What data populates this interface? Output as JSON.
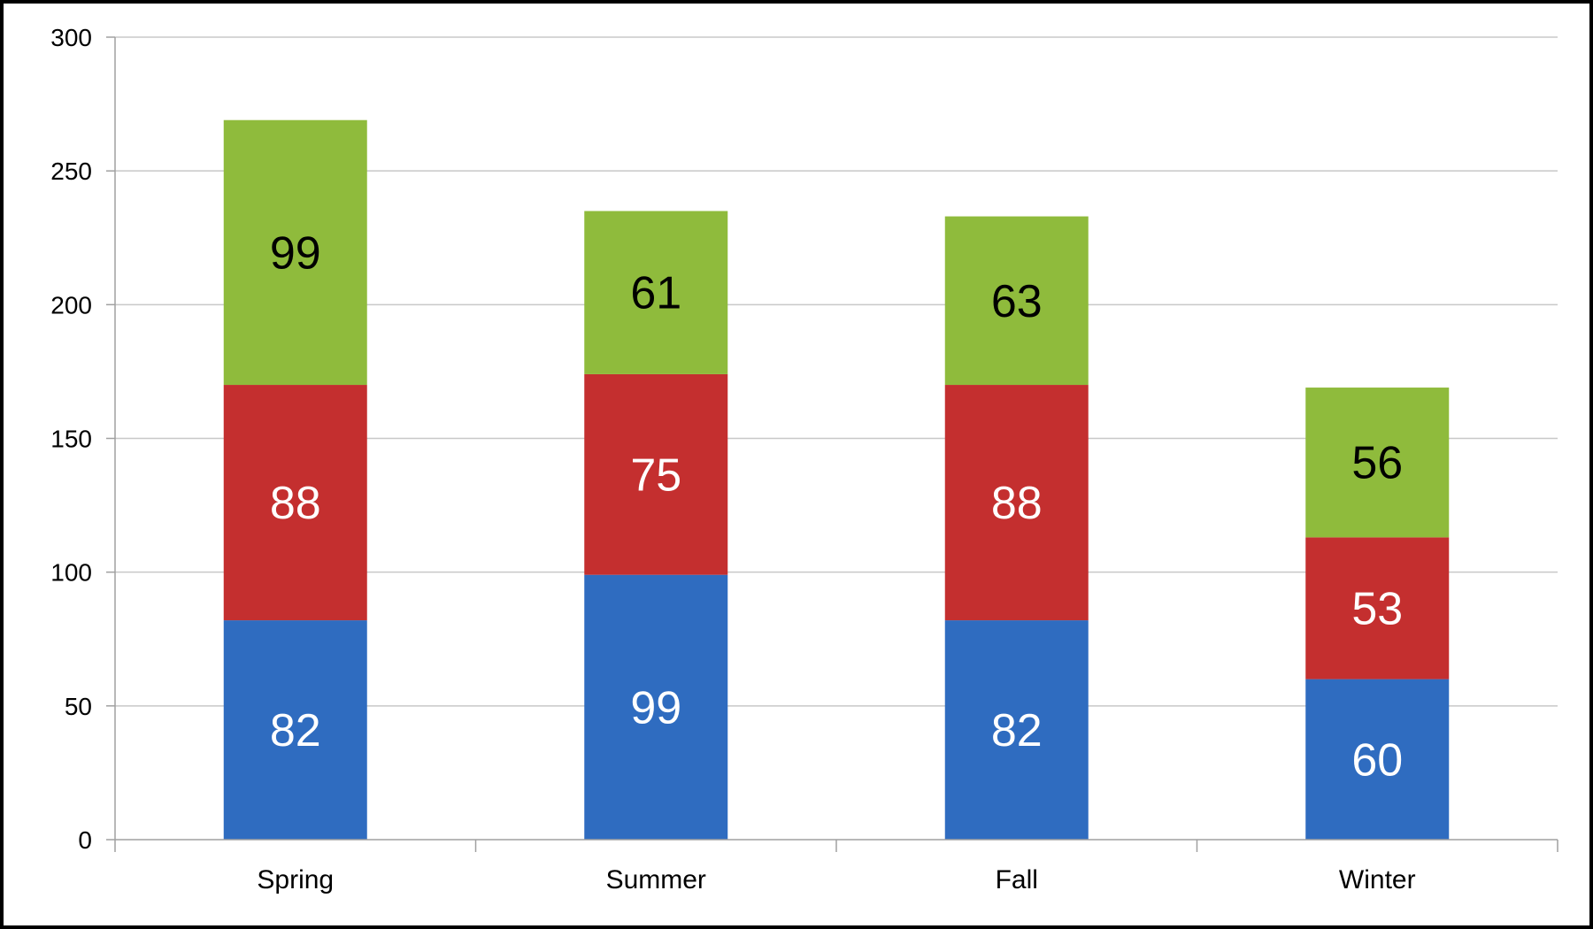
{
  "chart_data": {
    "type": "bar",
    "stacked": true,
    "categories": [
      "Spring",
      "Summer",
      "Fall",
      "Winter"
    ],
    "series": [
      {
        "values": [
          82,
          99,
          82,
          60
        ],
        "color": "#2f6cc0",
        "label_color": "#ffffff"
      },
      {
        "values": [
          88,
          75,
          88,
          53
        ],
        "color": "#c42f2f",
        "label_color": "#ffffff"
      },
      {
        "values": [
          99,
          61,
          63,
          56
        ],
        "color": "#8fbb3c",
        "label_color": "#000000"
      }
    ],
    "title": "",
    "xlabel": "",
    "ylabel": "",
    "ylim": [
      0,
      300
    ],
    "yticks": [
      "0",
      "50",
      "100",
      "150",
      "200",
      "250",
      "300"
    ],
    "grid": true,
    "legend": "none",
    "gridline_color": "#c8c8c8",
    "axis_color": "#a0a0a0"
  }
}
